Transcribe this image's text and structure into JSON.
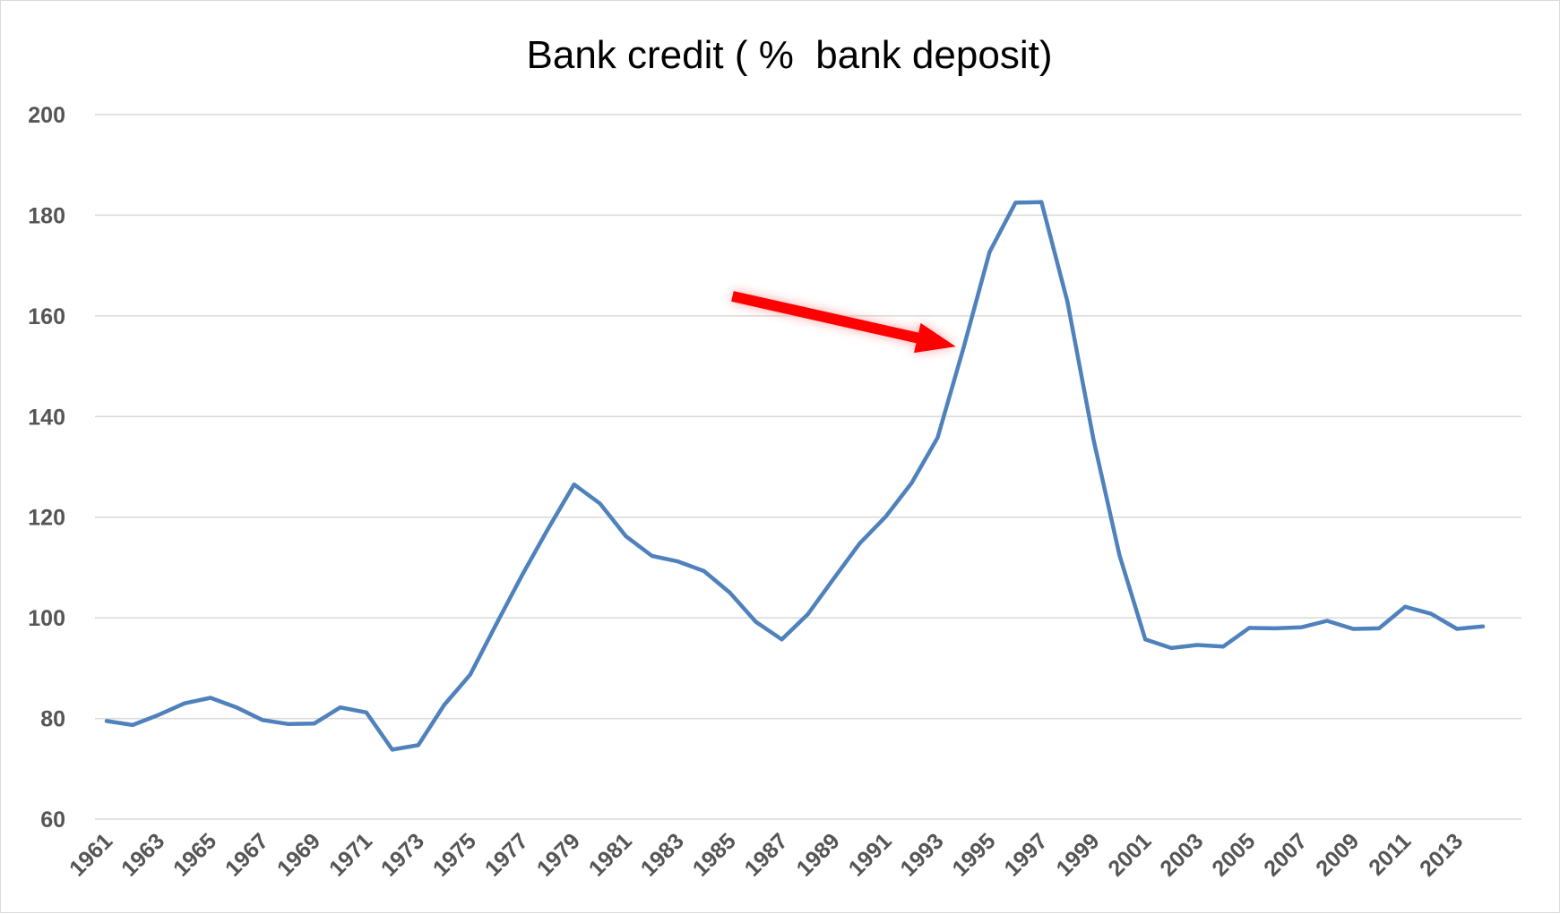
{
  "chart_data": {
    "type": "line",
    "title": "Bank credit ( %  bank deposit)",
    "xlabel": "",
    "ylabel": "",
    "ylim": [
      60,
      200
    ],
    "y_ticks": [
      60,
      80,
      100,
      120,
      140,
      160,
      180,
      200
    ],
    "x_tick_labels": [
      "1961",
      "1963",
      "1965",
      "1967",
      "1969",
      "1971",
      "1973",
      "1975",
      "1977",
      "1979",
      "1981",
      "1983",
      "1985",
      "1987",
      "1989",
      "1991",
      "1993",
      "1995",
      "1997",
      "1999",
      "2001",
      "2003",
      "2005",
      "2007",
      "2009",
      "2011",
      "2013"
    ],
    "grid": true,
    "legend": "none",
    "series": [
      {
        "color": "#4f81bd",
        "x": [
          1961,
          1962,
          1963,
          1964,
          1965,
          1966,
          1967,
          1968,
          1969,
          1970,
          1971,
          1972,
          1973,
          1974,
          1975,
          1976,
          1977,
          1978,
          1979,
          1980,
          1981,
          1982,
          1983,
          1984,
          1985,
          1986,
          1987,
          1988,
          1989,
          1990,
          1991,
          1992,
          1993,
          1994,
          1995,
          1996,
          1997,
          1998,
          1999,
          2000,
          2001,
          2002,
          2003,
          2004,
          2005,
          2006,
          2007,
          2008,
          2009,
          2010,
          2011,
          2012,
          2013,
          2014
        ],
        "values": [
          79.5,
          78.7,
          80.7,
          83.0,
          84.1,
          82.2,
          79.7,
          78.9,
          79.0,
          82.2,
          81.2,
          73.8,
          74.7,
          82.7,
          88.7,
          98.7,
          108.5,
          117.7,
          126.5,
          122.7,
          116.2,
          112.3,
          111.2,
          109.3,
          105.0,
          99.2,
          95.7,
          100.7,
          107.8,
          114.8,
          120.1,
          126.8,
          135.8,
          153.7,
          172.7,
          182.5,
          182.6,
          162.8,
          135.5,
          112.5,
          95.7,
          94.0,
          94.6,
          94.3,
          98.0,
          97.9,
          98.1,
          99.4,
          97.8,
          97.9,
          102.2,
          100.8,
          97.8,
          98.3
        ]
      }
    ],
    "annotations": [
      {
        "type": "arrow",
        "color": "#ff0000",
        "from": [
          1985.1,
          163.9
        ],
        "to": [
          1993.7,
          153.9
        ]
      }
    ]
  }
}
